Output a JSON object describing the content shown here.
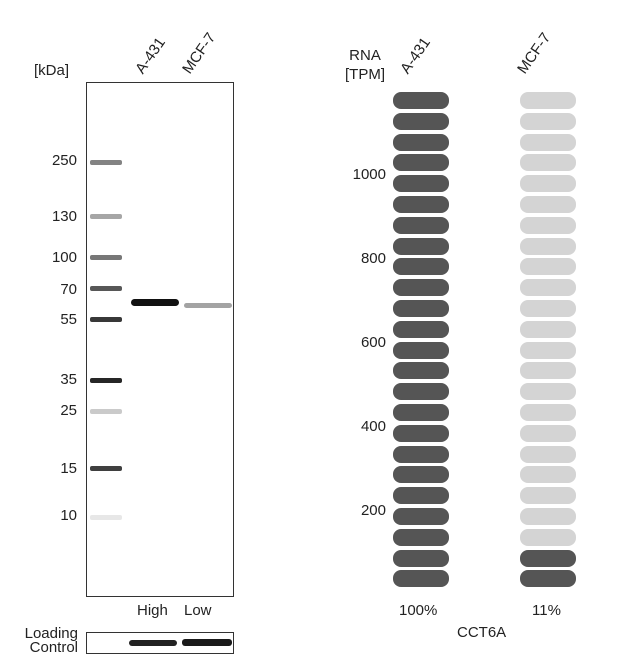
{
  "western_blot": {
    "unit_label": "[kDa]",
    "lanes": [
      "A-431",
      "MCF-7"
    ],
    "markers": [
      "250",
      "130",
      "100",
      "70",
      "55",
      "35",
      "25",
      "15",
      "10"
    ],
    "lane_levels": [
      "High",
      "Low"
    ],
    "loading_control_label_line1": "Loading",
    "loading_control_label_line2": "Control"
  },
  "rna": {
    "header_line1": "RNA",
    "header_line2": "[TPM]",
    "cell_lines": [
      "A-431",
      "MCF-7"
    ],
    "ticks": [
      "1000",
      "800",
      "600",
      "400",
      "200"
    ],
    "percentages": [
      "100%",
      "11%"
    ],
    "gene": "CCT6A",
    "dark_color": "#555555",
    "light_color": "#d4d4d4",
    "total_segments": 24,
    "filled_segments": [
      24,
      2
    ]
  }
}
